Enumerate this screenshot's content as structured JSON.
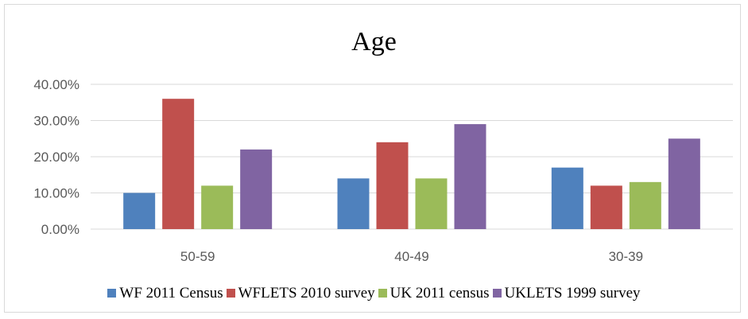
{
  "chart_data": {
    "type": "bar",
    "title": "Age",
    "xlabel": "",
    "ylabel": "",
    "categories": [
      "50-59",
      "40-49",
      "30-39"
    ],
    "series": [
      {
        "name": "WF 2011 Census",
        "color": "#4f81bd",
        "values": [
          10,
          14,
          17
        ]
      },
      {
        "name": "WFLETS 2010 survey",
        "color": "#c0504d",
        "values": [
          36,
          24,
          12
        ]
      },
      {
        "name": "UK 2011 census",
        "color": "#9bbb59",
        "values": [
          12,
          14,
          13
        ]
      },
      {
        "name": "UKLETS 1999 survey",
        "color": "#8064a2",
        "values": [
          22,
          29,
          25
        ]
      }
    ],
    "ylim": [
      0,
      40
    ],
    "yticks": [
      0,
      10,
      20,
      30,
      40
    ],
    "ytick_labels": [
      "0.00%",
      "10.00%",
      "20.00%",
      "30.00%",
      "40.00%"
    ],
    "grid": true,
    "legend_position": "bottom"
  }
}
